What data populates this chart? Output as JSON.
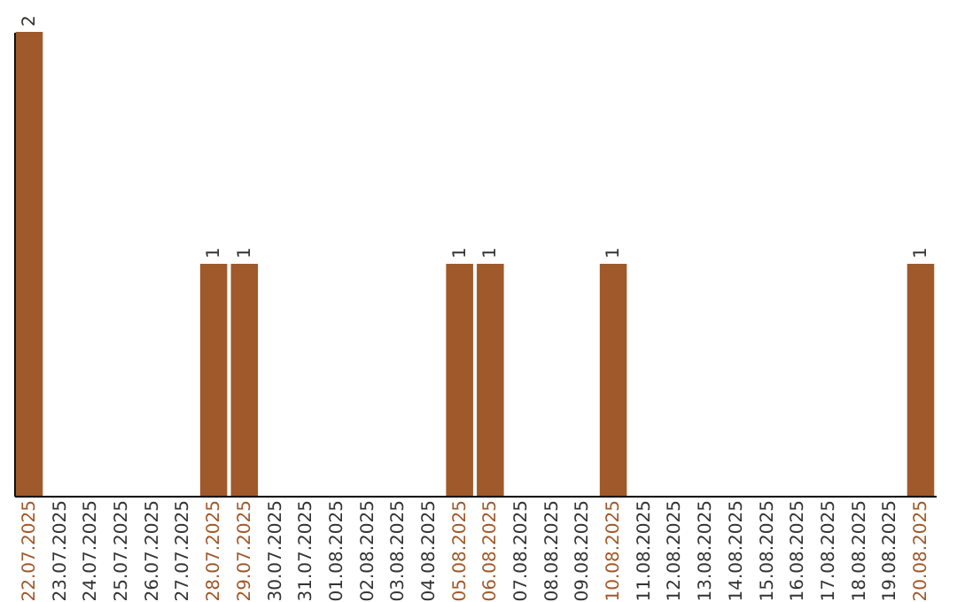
{
  "chart_data": {
    "type": "bar",
    "categories": [
      "22.07.2025",
      "23.07.2025",
      "24.07.2025",
      "25.07.2025",
      "26.07.2025",
      "27.07.2025",
      "28.07.2025",
      "29.07.2025",
      "30.07.2025",
      "31.07.2025",
      "01.08.2025",
      "02.08.2025",
      "03.08.2025",
      "04.08.2025",
      "05.08.2025",
      "06.08.2025",
      "07.08.2025",
      "08.08.2025",
      "09.08.2025",
      "10.08.2025",
      "11.08.2025",
      "12.08.2025",
      "13.08.2025",
      "14.08.2025",
      "15.08.2025",
      "16.08.2025",
      "17.08.2025",
      "18.08.2025",
      "19.08.2025",
      "20.08.2025"
    ],
    "values": [
      2,
      0,
      0,
      0,
      0,
      0,
      1,
      1,
      0,
      0,
      0,
      0,
      0,
      0,
      1,
      1,
      0,
      0,
      0,
      1,
      0,
      0,
      0,
      0,
      0,
      0,
      0,
      0,
      0,
      1
    ],
    "value_labels": [
      "2",
      null,
      null,
      null,
      null,
      null,
      "1",
      "1",
      null,
      null,
      null,
      null,
      null,
      null,
      "1",
      "1",
      null,
      null,
      null,
      "1",
      null,
      null,
      null,
      null,
      null,
      null,
      null,
      null,
      null,
      "1"
    ],
    "color": "#a0592a",
    "ylim": [
      0,
      2
    ],
    "tick_labels": "x"
  }
}
